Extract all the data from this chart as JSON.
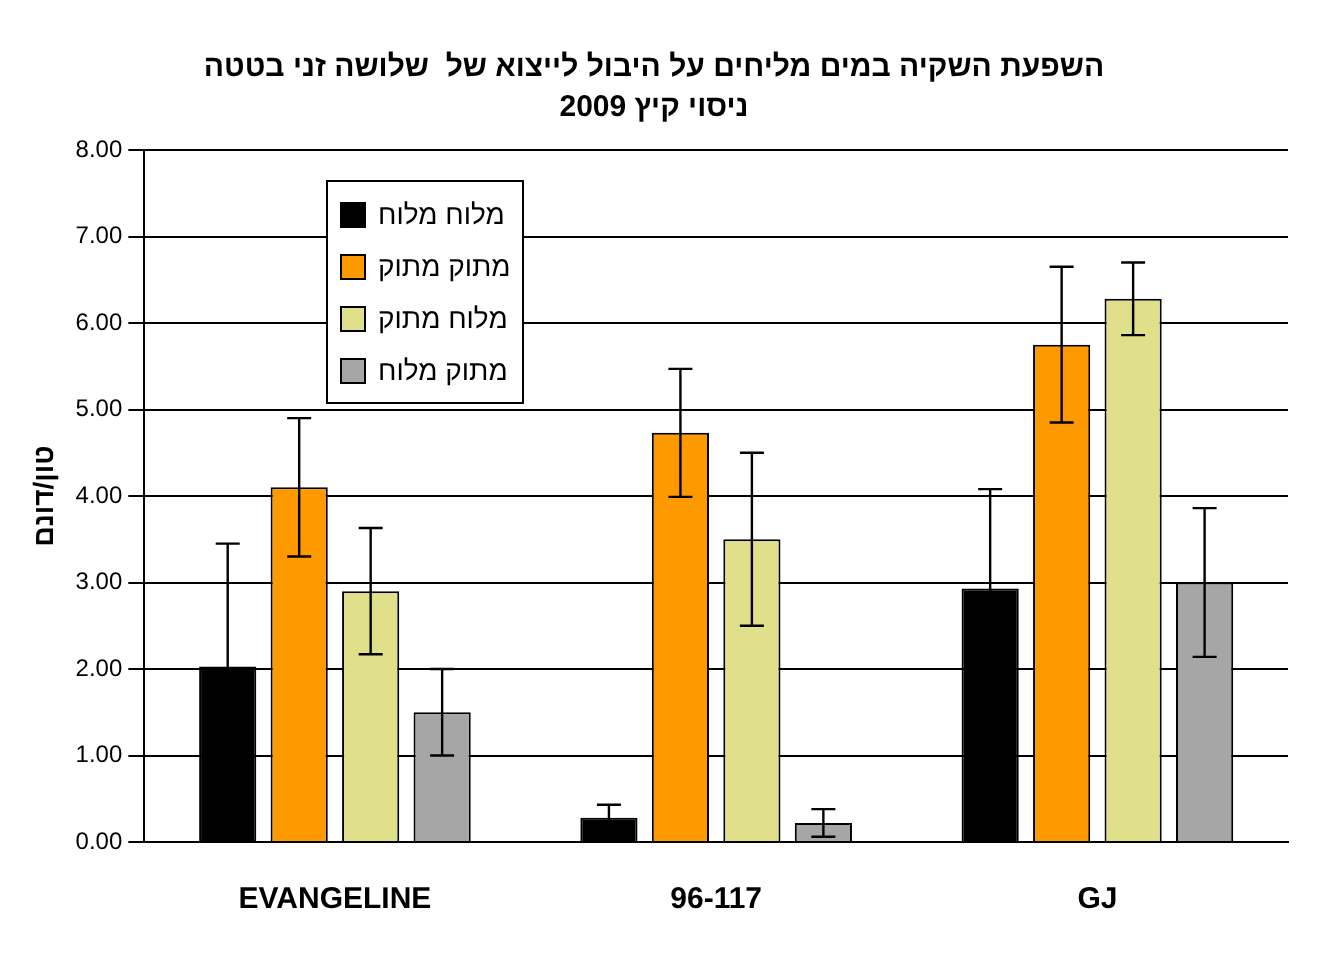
{
  "chart_data": {
    "type": "bar",
    "title": "השפעת השקיה במים מליחים על היבול לייצוא של  שלושה זני בטטה",
    "subtitle": "ניסוי קיץ 2009",
    "ylabel": "טון/דונם",
    "categories": [
      "EVANGELINE",
      "96-117",
      "GJ"
    ],
    "series": [
      {
        "name": "מלוח מלוח",
        "color": "#000000",
        "values": [
          2.03,
          0.28,
          2.93
        ],
        "errors": [
          1.42,
          0.15,
          1.15
        ]
      },
      {
        "name": "מתוק מתוק",
        "color": "#ff9900",
        "values": [
          4.1,
          4.73,
          5.75
        ],
        "errors": [
          0.8,
          0.74,
          0.9
        ]
      },
      {
        "name": "מלוח מתוק",
        "color": "#e0e08a",
        "values": [
          2.9,
          3.5,
          6.28
        ],
        "errors": [
          0.73,
          1.0,
          0.42
        ]
      },
      {
        "name": "מתוק מלוח",
        "color": "#a6a6a6",
        "values": [
          1.5,
          0.22,
          3.0
        ],
        "errors": [
          0.5,
          0.16,
          0.86
        ]
      }
    ],
    "ylim": [
      0,
      8
    ],
    "yticks": [
      {
        "value": 0,
        "label": "0.00"
      },
      {
        "value": 1,
        "label": "1.00"
      },
      {
        "value": 2,
        "label": "2.00"
      },
      {
        "value": 3,
        "label": "3.00"
      },
      {
        "value": 4,
        "label": "4.00"
      },
      {
        "value": 5,
        "label": "5.00"
      },
      {
        "value": 6,
        "label": "6.00"
      },
      {
        "value": 7,
        "label": "7.00"
      },
      {
        "value": 8,
        "label": "8.00"
      }
    ],
    "grid": "y",
    "legend": "top left"
  }
}
